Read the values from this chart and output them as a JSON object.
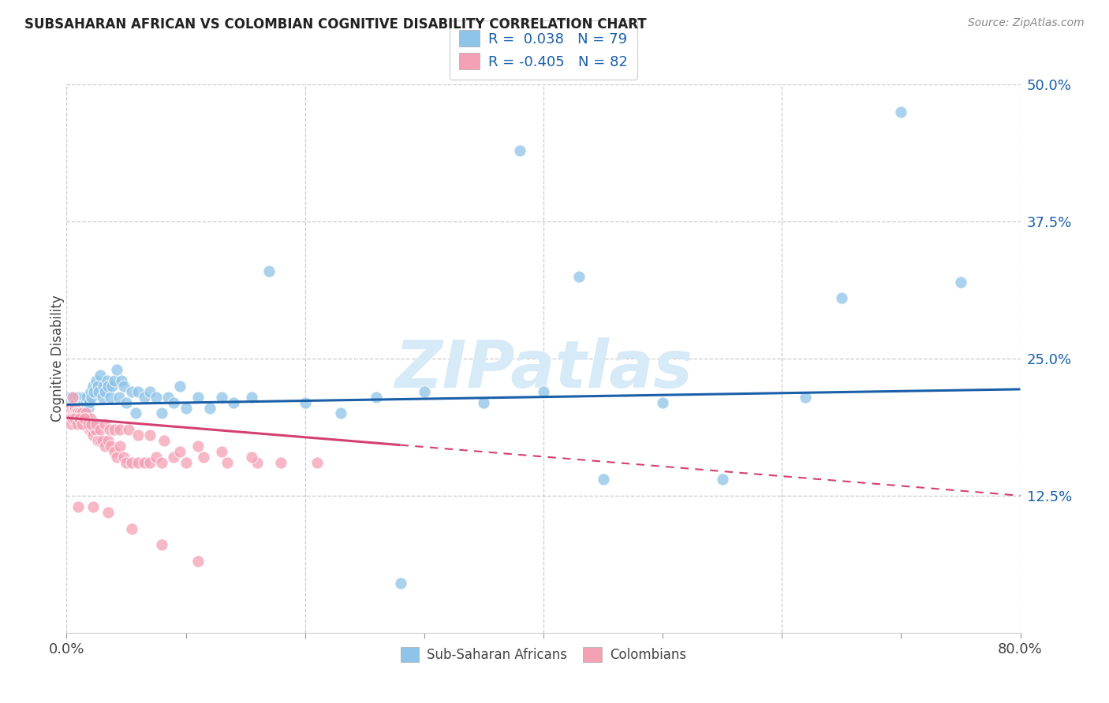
{
  "title": "SUBSAHARAN AFRICAN VS COLOMBIAN COGNITIVE DISABILITY CORRELATION CHART",
  "source": "Source: ZipAtlas.com",
  "ylabel": "Cognitive Disability",
  "legend_label1": "Sub-Saharan Africans",
  "legend_label2": "Colombians",
  "r1": 0.038,
  "n1": 79,
  "r2": -0.405,
  "n2": 82,
  "color_blue": "#8ec4e8",
  "color_pink": "#f4a0b5",
  "color_blue_dark": "#3d7bbf",
  "color_trendline_blue": "#1a5fa8",
  "color_trendline_pink": "#d44070",
  "watermark_color": "#d6eaf8",
  "xlim": [
    0.0,
    0.8
  ],
  "ylim": [
    0.0,
    0.5
  ],
  "ytick_values": [
    0.125,
    0.25,
    0.375,
    0.5
  ],
  "ytick_labels": [
    "12.5%",
    "25.0%",
    "37.5%",
    "50.0%"
  ],
  "blue_scatter_x": [
    0.001,
    0.002,
    0.003,
    0.004,
    0.005,
    0.005,
    0.006,
    0.006,
    0.007,
    0.008,
    0.008,
    0.009,
    0.01,
    0.01,
    0.011,
    0.012,
    0.013,
    0.013,
    0.014,
    0.015,
    0.015,
    0.016,
    0.017,
    0.018,
    0.019,
    0.02,
    0.021,
    0.022,
    0.023,
    0.025,
    0.026,
    0.027,
    0.028,
    0.03,
    0.031,
    0.032,
    0.034,
    0.035,
    0.037,
    0.038,
    0.04,
    0.042,
    0.044,
    0.046,
    0.048,
    0.05,
    0.055,
    0.058,
    0.06,
    0.065,
    0.07,
    0.075,
    0.08,
    0.085,
    0.09,
    0.095,
    0.1,
    0.11,
    0.12,
    0.13,
    0.14,
    0.155,
    0.17,
    0.2,
    0.23,
    0.26,
    0.3,
    0.35,
    0.4,
    0.45,
    0.5,
    0.55,
    0.62,
    0.65,
    0.7,
    0.75,
    0.38,
    0.43,
    0.28
  ],
  "blue_scatter_y": [
    0.21,
    0.215,
    0.205,
    0.2,
    0.215,
    0.195,
    0.21,
    0.205,
    0.215,
    0.21,
    0.2,
    0.205,
    0.215,
    0.205,
    0.21,
    0.2,
    0.215,
    0.205,
    0.21,
    0.215,
    0.2,
    0.21,
    0.215,
    0.205,
    0.21,
    0.22,
    0.215,
    0.225,
    0.22,
    0.23,
    0.225,
    0.22,
    0.235,
    0.215,
    0.225,
    0.22,
    0.23,
    0.225,
    0.215,
    0.225,
    0.23,
    0.24,
    0.215,
    0.23,
    0.225,
    0.21,
    0.22,
    0.2,
    0.22,
    0.215,
    0.22,
    0.215,
    0.2,
    0.215,
    0.21,
    0.225,
    0.205,
    0.215,
    0.205,
    0.215,
    0.21,
    0.215,
    0.33,
    0.21,
    0.2,
    0.215,
    0.22,
    0.21,
    0.22,
    0.14,
    0.21,
    0.14,
    0.215,
    0.305,
    0.475,
    0.32,
    0.44,
    0.325,
    0.045
  ],
  "pink_scatter_x": [
    0.001,
    0.002,
    0.003,
    0.004,
    0.005,
    0.005,
    0.006,
    0.006,
    0.007,
    0.008,
    0.008,
    0.009,
    0.01,
    0.01,
    0.011,
    0.012,
    0.012,
    0.013,
    0.014,
    0.015,
    0.016,
    0.017,
    0.018,
    0.019,
    0.02,
    0.021,
    0.022,
    0.024,
    0.026,
    0.028,
    0.03,
    0.032,
    0.035,
    0.037,
    0.04,
    0.042,
    0.045,
    0.048,
    0.05,
    0.055,
    0.06,
    0.065,
    0.07,
    0.075,
    0.08,
    0.09,
    0.1,
    0.115,
    0.135,
    0.16,
    0.003,
    0.004,
    0.005,
    0.007,
    0.009,
    0.011,
    0.013,
    0.015,
    0.018,
    0.021,
    0.025,
    0.028,
    0.032,
    0.036,
    0.04,
    0.045,
    0.052,
    0.06,
    0.07,
    0.082,
    0.095,
    0.11,
    0.13,
    0.155,
    0.18,
    0.21,
    0.01,
    0.022,
    0.035,
    0.055,
    0.08,
    0.11
  ],
  "pink_scatter_y": [
    0.2,
    0.205,
    0.2,
    0.195,
    0.215,
    0.2,
    0.2,
    0.195,
    0.205,
    0.2,
    0.195,
    0.2,
    0.195,
    0.19,
    0.2,
    0.195,
    0.19,
    0.2,
    0.195,
    0.19,
    0.2,
    0.195,
    0.19,
    0.185,
    0.195,
    0.185,
    0.18,
    0.185,
    0.175,
    0.175,
    0.175,
    0.17,
    0.175,
    0.17,
    0.165,
    0.16,
    0.17,
    0.16,
    0.155,
    0.155,
    0.155,
    0.155,
    0.155,
    0.16,
    0.155,
    0.16,
    0.155,
    0.16,
    0.155,
    0.155,
    0.195,
    0.19,
    0.195,
    0.195,
    0.19,
    0.195,
    0.19,
    0.195,
    0.19,
    0.19,
    0.19,
    0.185,
    0.19,
    0.185,
    0.185,
    0.185,
    0.185,
    0.18,
    0.18,
    0.175,
    0.165,
    0.17,
    0.165,
    0.16,
    0.155,
    0.155,
    0.115,
    0.115,
    0.11,
    0.095,
    0.08,
    0.065
  ],
  "pink_trendline_solid_end": 0.28,
  "blue_trendline_y0": 0.208,
  "blue_trendline_y1": 0.222,
  "pink_trendline_y0": 0.196,
  "pink_trendline_y1": 0.125
}
